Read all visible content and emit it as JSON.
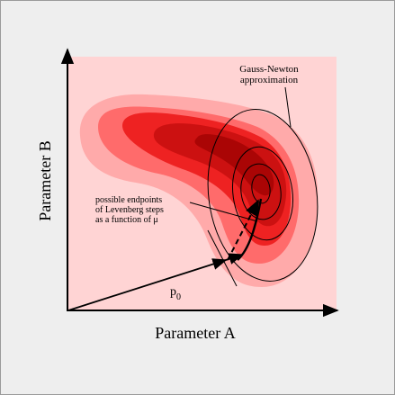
{
  "figure": {
    "xlabel": "Parameter A",
    "ylabel": "Parameter B",
    "gn_label_line1": "Gauss-Newton",
    "gn_label_line2": "approximation",
    "endpoints_line1": "possible endpoints",
    "endpoints_line2": "of Levenberg steps",
    "endpoints_line3": "as a function of μ",
    "p0_base": "p",
    "p0_sub": "0"
  },
  "colors": {
    "plot_background": "#ffd4d4",
    "contour_1": "#ffaaaa",
    "contour_2": "#ff6b6b",
    "contour_3": "#ee2222",
    "contour_4": "#cc1111",
    "contour_5": "#aa0505",
    "frame_background": "#eeeeee"
  }
}
